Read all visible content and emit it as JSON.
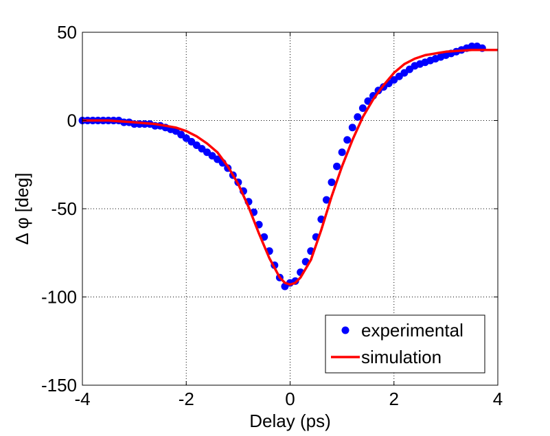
{
  "chart_data": {
    "type": "line",
    "xlabel": "Delay (ps)",
    "ylabel": "Δ φ [deg]",
    "xlim": [
      -4,
      4
    ],
    "ylim": [
      -150,
      50
    ],
    "xticks": [
      -4,
      -2,
      0,
      2,
      4
    ],
    "yticks": [
      -150,
      -100,
      -50,
      0,
      50
    ],
    "grid": true,
    "legend_position": "bottom-right",
    "series": [
      {
        "name": "experimental",
        "style": "markers",
        "color": "#0000ff",
        "x": [
          -4.0,
          -3.9,
          -3.8,
          -3.7,
          -3.6,
          -3.5,
          -3.4,
          -3.3,
          -3.2,
          -3.1,
          -3.0,
          -2.9,
          -2.8,
          -2.7,
          -2.6,
          -2.5,
          -2.4,
          -2.3,
          -2.2,
          -2.1,
          -2.0,
          -1.9,
          -1.8,
          -1.7,
          -1.6,
          -1.5,
          -1.4,
          -1.3,
          -1.2,
          -1.1,
          -1.0,
          -0.9,
          -0.8,
          -0.7,
          -0.6,
          -0.5,
          -0.4,
          -0.3,
          -0.2,
          -0.1,
          0.0,
          0.1,
          0.2,
          0.3,
          0.4,
          0.5,
          0.6,
          0.7,
          0.8,
          0.9,
          1.0,
          1.1,
          1.2,
          1.3,
          1.4,
          1.5,
          1.6,
          1.7,
          1.8,
          1.9,
          2.0,
          2.1,
          2.2,
          2.3,
          2.4,
          2.5,
          2.6,
          2.7,
          2.8,
          2.9,
          3.0,
          3.1,
          3.2,
          3.3,
          3.4,
          3.5,
          3.6,
          3.7
        ],
        "y": [
          0,
          0,
          0,
          0,
          0,
          0,
          0,
          0,
          -1,
          -1,
          -2,
          -2,
          -2,
          -2,
          -3,
          -3,
          -4,
          -5,
          -6,
          -8,
          -10,
          -12,
          -14,
          -16,
          -18,
          -20,
          -22,
          -24,
          -27,
          -31,
          -35,
          -40,
          -46,
          -52,
          -59,
          -66,
          -74,
          -82,
          -89,
          -94,
          -92,
          -91,
          -86,
          -80,
          -74,
          -66,
          -56,
          -45,
          -35,
          -26,
          -18,
          -11,
          -4,
          2,
          7,
          11,
          14,
          17,
          19,
          21,
          23,
          25,
          27,
          29,
          31,
          32,
          33,
          34,
          35,
          36,
          37,
          38,
          39,
          40,
          41,
          42,
          42,
          41
        ]
      },
      {
        "name": "simulation",
        "style": "line",
        "color": "#ff0000",
        "x": [
          -4.0,
          -3.5,
          -3.0,
          -2.6,
          -2.4,
          -2.2,
          -2.0,
          -1.8,
          -1.6,
          -1.4,
          -1.2,
          -1.0,
          -0.8,
          -0.6,
          -0.4,
          -0.2,
          -0.1,
          0.0,
          0.1,
          0.2,
          0.4,
          0.6,
          0.8,
          1.0,
          1.2,
          1.4,
          1.6,
          1.8,
          2.0,
          2.2,
          2.4,
          2.6,
          2.8,
          3.0,
          3.5,
          4.0
        ],
        "y": [
          0,
          0,
          -1,
          -2,
          -3,
          -4,
          -6,
          -9,
          -13,
          -18,
          -26,
          -36,
          -49,
          -64,
          -78,
          -89,
          -92,
          -93,
          -92,
          -89,
          -79,
          -62,
          -43,
          -26,
          -11,
          2,
          12,
          20,
          27,
          32,
          35,
          37,
          38,
          39,
          40,
          40
        ]
      }
    ]
  }
}
